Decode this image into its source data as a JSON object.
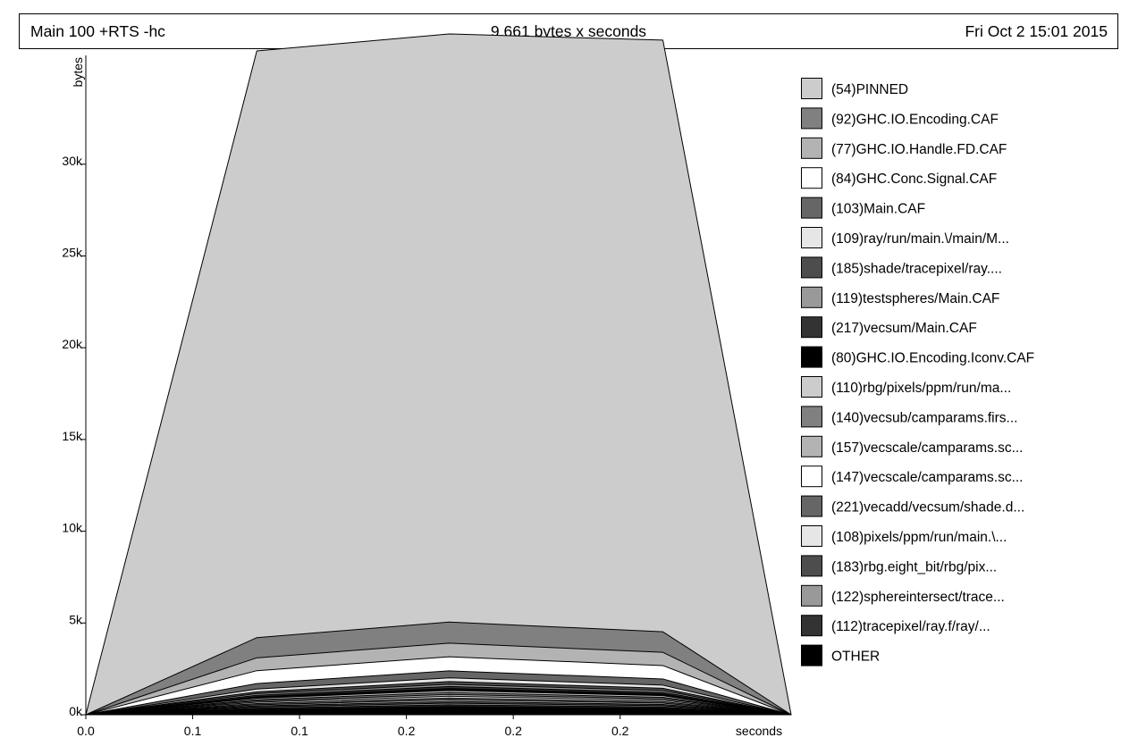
{
  "header": {
    "program": "Main 100 +RTS -hc",
    "total": "9,661 bytes x seconds",
    "date": "Fri Oct  2 15:01 2015"
  },
  "chart_data": {
    "type": "area",
    "stacked": true,
    "xlabel": "seconds",
    "ylabel": "bytes",
    "x": [
      0.0,
      0.08,
      0.17,
      0.27,
      0.33
    ],
    "x_range": [
      0.0,
      0.33
    ],
    "ylim": [
      0,
      37000
    ],
    "x_ticks": [
      {
        "value": 0.0,
        "label": "0.0"
      },
      {
        "value": 0.05,
        "label": "0.1"
      },
      {
        "value": 0.1,
        "label": "0.1"
      },
      {
        "value": 0.15,
        "label": "0.2"
      },
      {
        "value": 0.2,
        "label": "0.2"
      },
      {
        "value": 0.25,
        "label": "0.2"
      }
    ],
    "y_ticks": [
      {
        "value": 0,
        "label": "0k"
      },
      {
        "value": 5000,
        "label": "5k"
      },
      {
        "value": 10000,
        "label": "10k"
      },
      {
        "value": 15000,
        "label": "15k"
      },
      {
        "value": 20000,
        "label": "20k"
      },
      {
        "value": 25000,
        "label": "25k"
      },
      {
        "value": 30000,
        "label": "30k"
      }
    ],
    "grid": false,
    "legend_position": "right",
    "series": [
      {
        "name": "OTHER",
        "color": "#000000",
        "values": [
          0,
          300,
          450,
          350,
          0
        ]
      },
      {
        "name": "(112)tracepixel/ray.f/ray/...",
        "color": "#333333",
        "values": [
          0,
          60,
          90,
          70,
          0
        ]
      },
      {
        "name": "(122)sphereintersect/trace...",
        "color": "#999999",
        "values": [
          0,
          60,
          90,
          70,
          0
        ]
      },
      {
        "name": "(183)rbg.eight_bit/rbg/pix...",
        "color": "#4d4d4d",
        "values": [
          0,
          60,
          90,
          70,
          0
        ]
      },
      {
        "name": "(108)pixels/ppm/run/main.\\...",
        "color": "#e6e6e6",
        "values": [
          0,
          60,
          90,
          70,
          0
        ]
      },
      {
        "name": "(221)vecadd/vecsum/shade.d...",
        "color": "#666666",
        "values": [
          0,
          70,
          100,
          80,
          0
        ]
      },
      {
        "name": "(147)vecscale/camparams.sc...",
        "color": "#ffffff",
        "values": [
          0,
          70,
          100,
          80,
          0
        ]
      },
      {
        "name": "(157)vecscale/camparams.sc...",
        "color": "#b3b3b3",
        "values": [
          0,
          70,
          100,
          80,
          0
        ]
      },
      {
        "name": "(140)vecsub/camparams.firs...",
        "color": "#808080",
        "values": [
          0,
          70,
          100,
          80,
          0
        ]
      },
      {
        "name": "(110)rbg/pixels/ppm/run/ma...",
        "color": "#cccccc",
        "values": [
          0,
          80,
          110,
          90,
          0
        ]
      },
      {
        "name": "(80)GHC.IO.Encoding.Iconv.CAF",
        "color": "#000000",
        "values": [
          0,
          80,
          110,
          90,
          0
        ]
      },
      {
        "name": "(217)vecsum/Main.CAF",
        "color": "#333333",
        "values": [
          0,
          80,
          110,
          90,
          0
        ]
      },
      {
        "name": "(119)testspheres/Main.CAF",
        "color": "#999999",
        "values": [
          0,
          90,
          120,
          100,
          0
        ]
      },
      {
        "name": "(185)shade/tracepixel/ray....",
        "color": "#4d4d4d",
        "values": [
          0,
          100,
          150,
          120,
          0
        ]
      },
      {
        "name": "(109)ray/run/main.\\/main/M...",
        "color": "#e6e6e6",
        "values": [
          0,
          150,
          200,
          170,
          0
        ]
      },
      {
        "name": "(103)Main.CAF",
        "color": "#666666",
        "values": [
          0,
          300,
          380,
          340,
          0
        ]
      },
      {
        "name": "(84)GHC.Conc.Signal.CAF",
        "color": "#ffffff",
        "values": [
          0,
          700,
          770,
          730,
          0
        ]
      },
      {
        "name": "(77)GHC.IO.Handle.FD.CAF",
        "color": "#b3b3b3",
        "values": [
          0,
          700,
          740,
          720,
          0
        ]
      },
      {
        "name": "(92)GHC.IO.Encoding.CAF",
        "color": "#808080",
        "values": [
          0,
          1100,
          1150,
          1120,
          0
        ]
      },
      {
        "name": "(54)PINNED",
        "color": "#cccccc",
        "values": [
          0,
          31970,
          32050,
          32240,
          0
        ]
      }
    ]
  }
}
